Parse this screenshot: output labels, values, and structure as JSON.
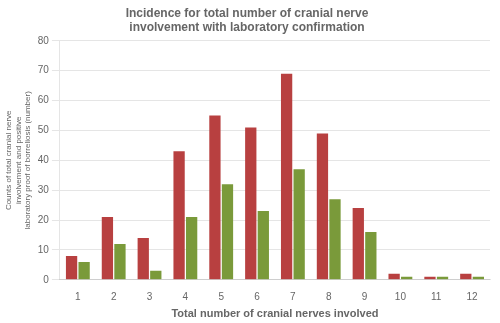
{
  "chart_data": {
    "type": "bar",
    "title": "Incidence for total number of cranial nerve\ninvolvement with laboratory confirmation",
    "categories": [
      1,
      2,
      3,
      4,
      5,
      6,
      7,
      8,
      9,
      10,
      11,
      12
    ],
    "series": [
      {
        "color": "#b84040",
        "values": [
          8,
          21,
          14,
          43,
          55,
          51,
          69,
          49,
          24,
          2,
          1,
          2
        ]
      },
      {
        "color": "#7a9a3a",
        "values": [
          6,
          12,
          3,
          21,
          32,
          23,
          37,
          27,
          16,
          1,
          1,
          1
        ]
      }
    ],
    "xlabel": "Total number of cranial nerves involved",
    "ylabel": "Counts of total cranial nerve\ninvolvement and positive\nlaboratory proof of borreliosis (number)",
    "ylim": [
      0,
      80
    ],
    "yticks": [
      0,
      10,
      20,
      30,
      40,
      50,
      60,
      70,
      80
    ],
    "grid": true
  }
}
